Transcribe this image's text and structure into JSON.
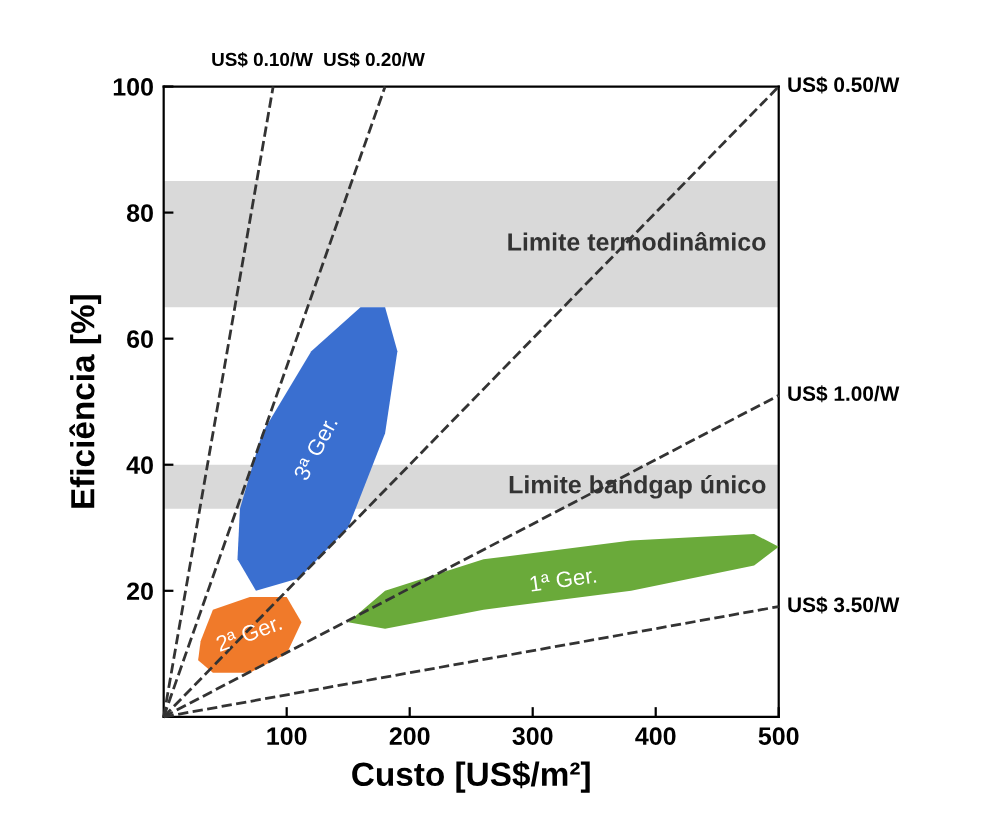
{
  "chart_data": {
    "type": "line",
    "xlabel": "Custo [US$/m²]",
    "ylabel": "Eficiência [%]",
    "xlim": [
      0,
      500
    ],
    "ylim": [
      0,
      100
    ],
    "xticks": [
      100,
      200,
      300,
      400,
      500
    ],
    "yticks": [
      20,
      40,
      60,
      80,
      100
    ],
    "grid": false,
    "line_style": "dashed",
    "marker": "none",
    "bands": [
      {
        "axis": "y",
        "from": 65,
        "to": 85,
        "label": "Limite termodinâmico",
        "color": "#d9d9d9"
      },
      {
        "axis": "y",
        "from": 33,
        "to": 40,
        "label": "Limite bandgap único",
        "color": "#d9d9d9"
      }
    ],
    "series": [
      {
        "type": "area",
        "color": "#3a6fd0",
        "x": [
          75,
          110,
          150,
          180,
          190,
          180,
          160,
          120,
          80,
          62,
          60,
          75
        ],
        "values": [
          20,
          22,
          30,
          45,
          58,
          65,
          65,
          58,
          45,
          33,
          25,
          20
        ]
      },
      {
        "type": "area",
        "color": "#f07a2a",
        "x": [
          30,
          40,
          70,
          100,
          112,
          100,
          70,
          40,
          28,
          30
        ],
        "values": [
          12,
          17,
          19,
          19,
          15,
          10,
          7,
          7,
          9,
          12
        ]
      },
      {
        "type": "area",
        "color": "#6aaa3a",
        "x": [
          150,
          180,
          260,
          380,
          480,
          500,
          480,
          380,
          260,
          180,
          150
        ],
        "values": [
          15,
          20,
          25,
          28,
          29,
          27,
          24,
          20,
          17,
          14,
          15
        ]
      },
      {
        "name": "US$ 0.10/W",
        "color": "#333333",
        "x": [
          0,
          89
        ],
        "values": [
          0,
          100
        ]
      },
      {
        "name": "US$ 0.20/W",
        "color": "#333333",
        "x": [
          0,
          180
        ],
        "values": [
          0,
          100
        ]
      },
      {
        "name": "US$ 0.50/W",
        "color": "#333333",
        "x": [
          0,
          500
        ],
        "values": [
          0,
          100
        ]
      },
      {
        "name": "US$ 1.00/W",
        "color": "#333333",
        "x": [
          0,
          500
        ],
        "values": [
          0,
          51
        ]
      },
      {
        "name": "US$ 3.50/W",
        "color": "#333333",
        "x": [
          0,
          500
        ],
        "values": [
          0,
          17.5
        ]
      }
    ],
    "annotations": [
      "3ª Ger.",
      "2ª Ger.",
      "1ª Ger."
    ]
  }
}
